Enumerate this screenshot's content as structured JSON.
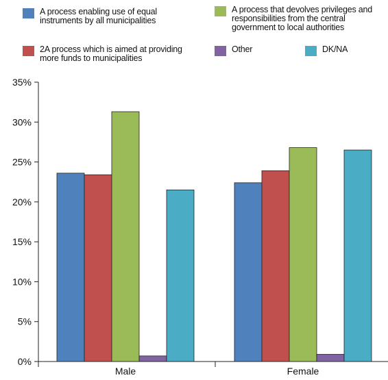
{
  "chart_data": {
    "type": "bar",
    "title": "",
    "xlabel": "",
    "ylabel": "",
    "categories": [
      "Male",
      "Female"
    ],
    "ylim": [
      0,
      35
    ],
    "ytick_labels": [
      "0%",
      "5%",
      "10%",
      "15%",
      "20%",
      "25%",
      "30%",
      "35%"
    ],
    "ytick_values": [
      0,
      5,
      10,
      15,
      20,
      25,
      30,
      35
    ],
    "grid": false,
    "legend_position": "top",
    "series": [
      {
        "name": "A process enabling use of equal instruments by all municipalities",
        "color": "#4f81bd",
        "values": [
          23.6,
          22.4
        ]
      },
      {
        "name": "2A process which is aimed at providing more funds to municipalities",
        "color": "#c0504d",
        "values": [
          23.4,
          23.9
        ]
      },
      {
        "name": "A process that devolves privileges and responsibilities from the central government to local authorities",
        "color": "#9bbb59",
        "values": [
          31.3,
          26.8
        ]
      },
      {
        "name": "Other",
        "color": "#8064a2",
        "values": [
          0.7,
          0.9
        ]
      },
      {
        "name": "DK/NA",
        "color": "#4bacc6",
        "values": [
          21.5,
          26.5
        ]
      }
    ]
  },
  "legend": {
    "item0": {
      "line1": "A process enabling use of equal",
      "line2": "instruments by all municipalities"
    },
    "item1": {
      "line1": "2A process which is aimed at providing",
      "line2": "more funds to municipalities"
    },
    "item2": {
      "line1": "A process that devolves privileges and",
      "line2": "responsibilities from the central",
      "line3": "government to local authorities"
    },
    "item3": {
      "line1": "Other"
    },
    "item4": {
      "line1": "DK/NA"
    }
  }
}
